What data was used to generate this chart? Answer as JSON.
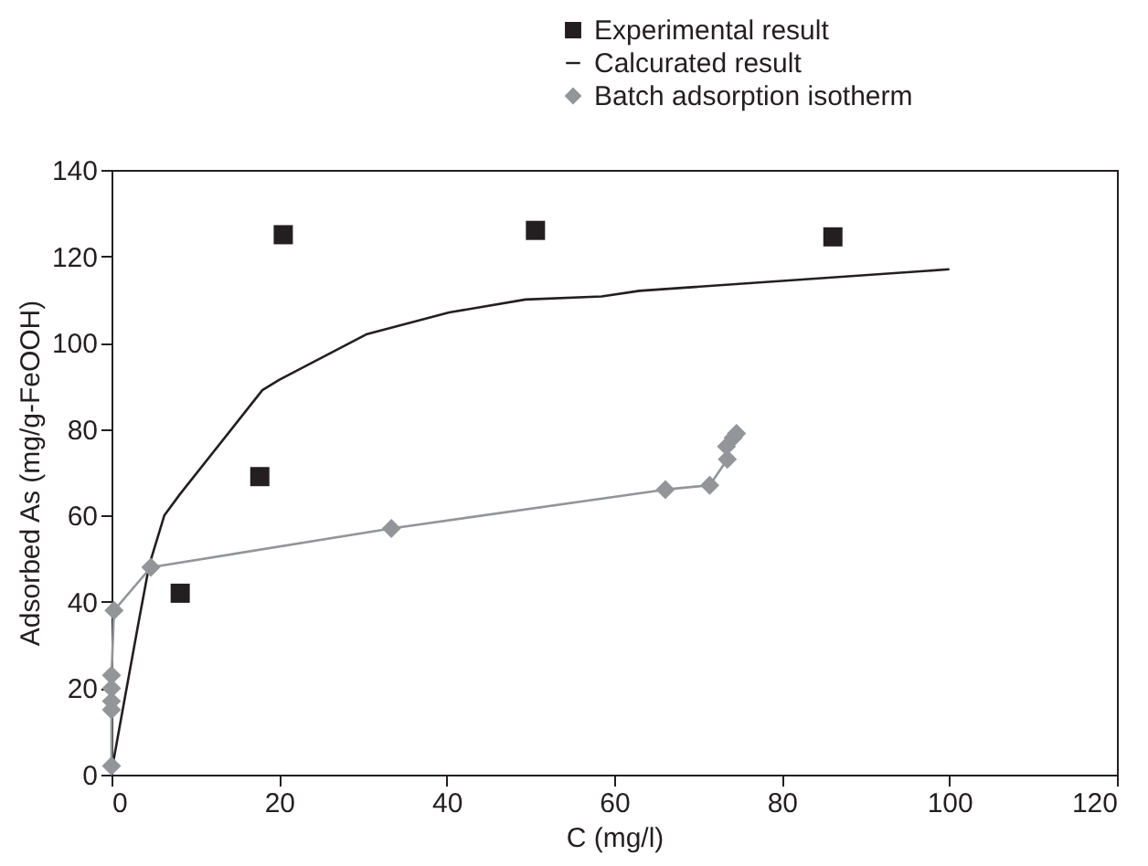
{
  "chart_data": {
    "type": "scatter",
    "xlabel": "C (mg/l)",
    "ylabel": "Adsorbed As (mg/g-FeOOH)",
    "xlim": [
      0,
      120
    ],
    "xticks": [
      0,
      20,
      40,
      60,
      80,
      100,
      120
    ],
    "ylim": [
      0,
      140
    ],
    "yticks": [
      0,
      20,
      40,
      60,
      80,
      100,
      120,
      140
    ],
    "legend": "top right",
    "series": [
      {
        "name": "Experimental result",
        "marker": "square",
        "color": "#231f20",
        "x": [
          8.2,
          17.7,
          20.5,
          50.6,
          86.1
        ],
        "values": [
          42,
          69,
          125,
          126,
          124.5
        ]
      },
      {
        "name": "Calcurated result",
        "type": "line",
        "marker": "none",
        "color": "#231f20",
        "x": [
          0,
          1.8,
          3.3,
          4.5,
          6.3,
          8.2,
          18,
          20,
          30.5,
          40.3,
          49.4,
          58.5,
          63,
          100
        ],
        "values": [
          0.7,
          20,
          36,
          48.5,
          60,
          65,
          89,
          91.4,
          102,
          107,
          110,
          110.7,
          112,
          117
        ]
      },
      {
        "name": "Batch adsorption isotherm",
        "type": "line",
        "marker": "diamond",
        "color": "#939598",
        "x": [
          0,
          0,
          0,
          0,
          0,
          0.3,
          4.7,
          33.4,
          66.1,
          71.4,
          73.5,
          73.4,
          74.2,
          74.6
        ],
        "values": [
          2,
          15,
          17,
          20,
          23,
          38,
          48,
          57,
          66,
          67,
          73,
          76,
          78,
          79
        ]
      }
    ]
  }
}
